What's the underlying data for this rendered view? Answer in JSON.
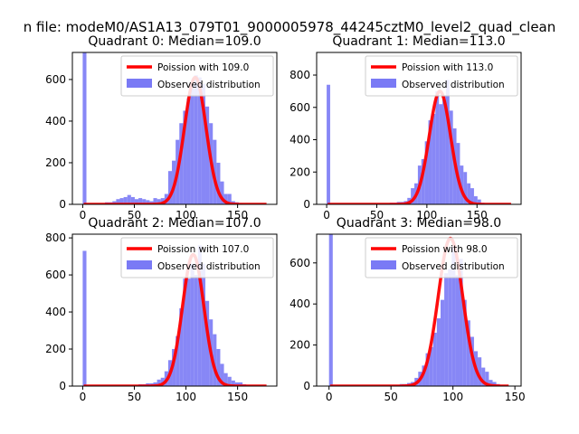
{
  "suptitle": "n file: modeM0/AS1A13_079T01_9000005978_44245cztM0_level2_quad_clean",
  "colors": {
    "hist": "#7a7af5",
    "poisson": "#ff0000",
    "axis": "#000000"
  },
  "chart_data": [
    {
      "type": "bar",
      "title": "Quadrant 0: Median=109.0",
      "xlim": [
        -10,
        188
      ],
      "ylim": [
        0,
        730
      ],
      "xticks": [
        0,
        50,
        100,
        150
      ],
      "yticks": [
        0,
        200,
        400,
        600
      ],
      "legend": {
        "placement": "top-right",
        "entries": [
          "Poission with 109.0",
          "Observed distribution"
        ]
      },
      "poisson_mean": 109.0,
      "poisson_peak": 610,
      "bin_width": 3.6,
      "hist": [
        [
          0,
          730
        ],
        [
          21.6,
          10
        ],
        [
          25.2,
          10
        ],
        [
          28.8,
          15
        ],
        [
          32.4,
          25
        ],
        [
          36,
          30
        ],
        [
          39.6,
          35
        ],
        [
          43.2,
          45
        ],
        [
          46.8,
          35
        ],
        [
          50.4,
          25
        ],
        [
          54,
          30
        ],
        [
          57.6,
          25
        ],
        [
          61.2,
          20
        ],
        [
          64.8,
          15
        ],
        [
          68.4,
          30
        ],
        [
          72,
          25
        ],
        [
          75.6,
          30
        ],
        [
          79.2,
          50
        ],
        [
          82.8,
          160
        ],
        [
          86.4,
          210
        ],
        [
          90,
          310
        ],
        [
          93.6,
          390
        ],
        [
          97.2,
          450
        ],
        [
          100.8,
          510
        ],
        [
          104.4,
          580
        ],
        [
          108,
          620
        ],
        [
          111.6,
          610
        ],
        [
          115.2,
          580
        ],
        [
          118.8,
          470
        ],
        [
          122.4,
          390
        ],
        [
          126,
          310
        ],
        [
          129.6,
          200
        ],
        [
          133.2,
          110
        ],
        [
          136.8,
          50
        ],
        [
          140.4,
          50
        ],
        [
          144,
          15
        ],
        [
          147.6,
          10
        ],
        [
          151.2,
          5
        ]
      ]
    },
    {
      "type": "bar",
      "title": "Quadrant 1: Median=113.0",
      "xlim": [
        -10,
        194
      ],
      "ylim": [
        0,
        940
      ],
      "xticks": [
        0,
        50,
        100,
        150
      ],
      "yticks": [
        0,
        200,
        400,
        600,
        800
      ],
      "legend": {
        "placement": "top-right",
        "entries": [
          "Poission with 113.0",
          "Observed distribution"
        ]
      },
      "poisson_mean": 113.0,
      "poisson_peak": 700,
      "bin_width": 3.5,
      "hist": [
        [
          0,
          740
        ],
        [
          63,
          10
        ],
        [
          66.5,
          10
        ],
        [
          70,
          15
        ],
        [
          73.5,
          15
        ],
        [
          77,
          20
        ],
        [
          80.5,
          40
        ],
        [
          84,
          100
        ],
        [
          87.5,
          130
        ],
        [
          91,
          240
        ],
        [
          94.5,
          280
        ],
        [
          98,
          390
        ],
        [
          101.5,
          520
        ],
        [
          105,
          560
        ],
        [
          108.5,
          700
        ],
        [
          112,
          620
        ],
        [
          115.5,
          670
        ],
        [
          119,
          770
        ],
        [
          122.5,
          580
        ],
        [
          126,
          470
        ],
        [
          129.5,
          380
        ],
        [
          133,
          240
        ],
        [
          136.5,
          200
        ],
        [
          140,
          130
        ],
        [
          143.5,
          100
        ],
        [
          147,
          50
        ],
        [
          150.5,
          30
        ],
        [
          154,
          10
        ]
      ]
    },
    {
      "type": "bar",
      "title": "Quadrant 2: Median=107.0",
      "xlim": [
        -10,
        188
      ],
      "ylim": [
        0,
        820
      ],
      "xticks": [
        0,
        50,
        100,
        150
      ],
      "yticks": [
        0,
        200,
        400,
        600,
        800
      ],
      "legend": {
        "placement": "top-right",
        "entries": [
          "Poission with 107.0",
          "Observed distribution"
        ]
      },
      "poisson_mean": 107.0,
      "poisson_peak": 710,
      "bin_width": 3.6,
      "hist": [
        [
          0,
          730
        ],
        [
          54,
          10
        ],
        [
          57.6,
          10
        ],
        [
          61.2,
          15
        ],
        [
          64.8,
          15
        ],
        [
          68.4,
          20
        ],
        [
          72,
          35
        ],
        [
          75.6,
          45
        ],
        [
          79.2,
          80
        ],
        [
          82.8,
          140
        ],
        [
          86.4,
          200
        ],
        [
          90,
          270
        ],
        [
          93.6,
          420
        ],
        [
          97.2,
          580
        ],
        [
          100.8,
          580
        ],
        [
          104.4,
          660
        ],
        [
          108,
          600
        ],
        [
          111.6,
          760
        ],
        [
          115.2,
          660
        ],
        [
          118.8,
          460
        ],
        [
          122.4,
          360
        ],
        [
          126,
          280
        ],
        [
          129.6,
          200
        ],
        [
          133.2,
          120
        ],
        [
          136.8,
          70
        ],
        [
          140.4,
          50
        ],
        [
          144,
          30
        ],
        [
          147.6,
          20
        ],
        [
          151.2,
          20
        ],
        [
          154.8,
          10
        ],
        [
          158.4,
          5
        ]
      ]
    },
    {
      "type": "bar",
      "title": "Quadrant 3: Median=98.0",
      "xlim": [
        -10,
        155
      ],
      "ylim": [
        0,
        740
      ],
      "xticks": [
        0,
        50,
        100,
        150
      ],
      "yticks": [
        0,
        200,
        400,
        600
      ],
      "legend": {
        "placement": "top-right",
        "entries": [
          "Poission with 98.0",
          "Observed distribution"
        ]
      },
      "poisson_mean": 98.0,
      "poisson_peak": 720,
      "bin_width": 3.0,
      "hist": [
        [
          0,
          740
        ],
        [
          51,
          5
        ],
        [
          54,
          5
        ],
        [
          57,
          10
        ],
        [
          60,
          10
        ],
        [
          63,
          15
        ],
        [
          66,
          20
        ],
        [
          69,
          40
        ],
        [
          72,
          70
        ],
        [
          75,
          100
        ],
        [
          78,
          160
        ],
        [
          81,
          190
        ],
        [
          84,
          260
        ],
        [
          87,
          330
        ],
        [
          90,
          420
        ],
        [
          93,
          550
        ],
        [
          96,
          570
        ],
        [
          99,
          680
        ],
        [
          102,
          540
        ],
        [
          105,
          620
        ],
        [
          108,
          420
        ],
        [
          111,
          320
        ],
        [
          114,
          240
        ],
        [
          117,
          170
        ],
        [
          120,
          140
        ],
        [
          123,
          90
        ],
        [
          126,
          70
        ],
        [
          129,
          30
        ],
        [
          132,
          20
        ],
        [
          135,
          10
        ]
      ]
    }
  ]
}
